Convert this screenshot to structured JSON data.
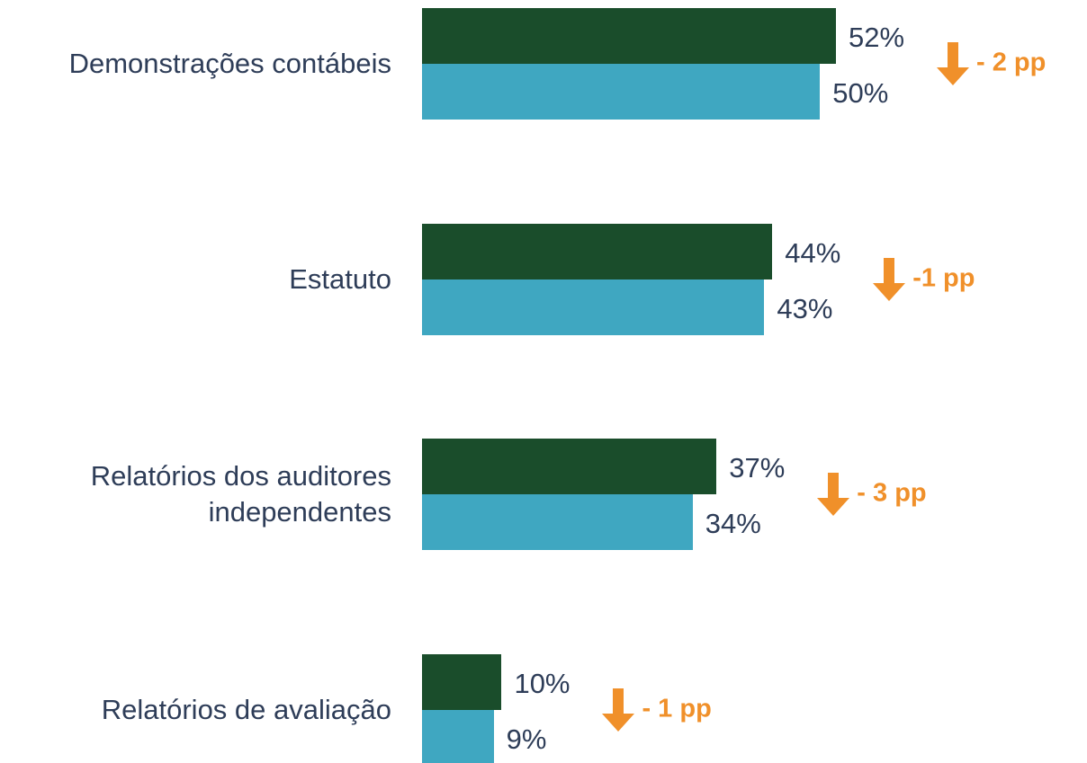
{
  "chart_data": {
    "type": "bar",
    "orientation": "horizontal",
    "categories": [
      "Demonstrações contábeis",
      "Estatuto",
      "Relatórios dos auditores\nindependentes",
      "Relatórios de avaliação"
    ],
    "series": [
      {
        "color": "#1a4d2b",
        "values": [
          52,
          44,
          37,
          10
        ],
        "value_labels": [
          "52%",
          "44%",
          "37%",
          "10%"
        ]
      },
      {
        "color": "#3fa7c1",
        "values": [
          50,
          43,
          34,
          9
        ],
        "value_labels": [
          "50%",
          "43%",
          "34%",
          "9%"
        ]
      }
    ],
    "annotations": [
      "- 2 pp",
      "-1 pp",
      "- 3 pp",
      "- 1 pp"
    ],
    "annotation_color": "#f0902a"
  }
}
